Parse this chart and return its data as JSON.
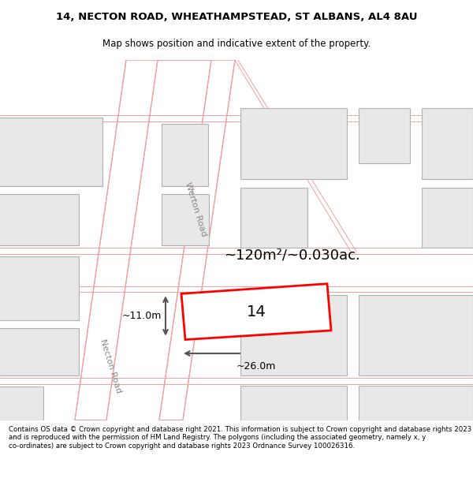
{
  "title_line1": "14, NECTON ROAD, WHEATHAMPSTEAD, ST ALBANS, AL4 8AU",
  "title_line2": "Map shows position and indicative extent of the property.",
  "footer_text": "Contains OS data © Crown copyright and database right 2021. This information is subject to Crown copyright and database rights 2023 and is reproduced with the permission of HM Land Registry. The polygons (including the associated geometry, namely x, y co-ordinates) are subject to Crown copyright and database rights 2023 Ordnance Survey 100026316.",
  "background_color": "#ffffff",
  "building_fill": "#e8e8e8",
  "building_edge": "#b0b0b0",
  "road_line_color": "#f0a0a0",
  "highlight_color": "#ff0000",
  "dim_line_color": "#555555",
  "area_text": "~120m²/~0.030ac.",
  "dim_width": "~26.0m",
  "dim_height": "~11.0m",
  "label_number": "14",
  "road_label1": "Necton Road",
  "road_label2": "Werton Road",
  "title_fontsize": 9.5,
  "subtitle_fontsize": 8.5,
  "footer_fontsize": 6.2,
  "area_fontsize": 13,
  "label_fontsize": 14,
  "dim_fontsize": 9,
  "road_label_fontsize": 8
}
